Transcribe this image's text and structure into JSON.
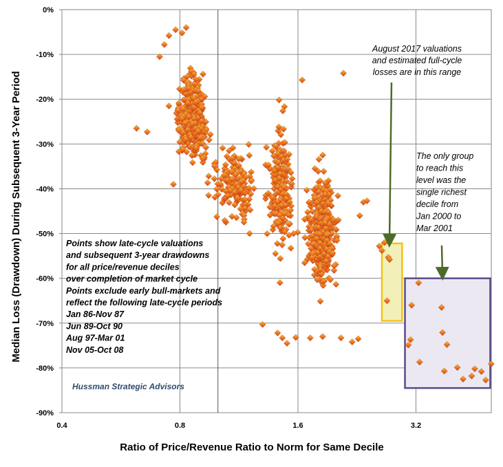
{
  "chart_data": {
    "type": "scatter",
    "title": "",
    "xlabel": "Ratio of Price/Revenue Ratio to Norm for Same Decile",
    "ylabel": "Median Loss (Drawdown) During Subsequent 3-Year Period",
    "x_scale": "log2",
    "xlim": [
      0.4,
      5.4
    ],
    "ylim": [
      -90,
      0
    ],
    "x_tick_labels": [
      "0.4",
      "0.8",
      "1.6",
      "3.2"
    ],
    "x_ticks": [
      0.4,
      0.8,
      1.6,
      3.2
    ],
    "y_ticks": [
      0,
      -10,
      -20,
      -30,
      -40,
      -50,
      -60,
      -70,
      -80,
      -90
    ],
    "y_tick_labels": [
      "0%",
      "-10%",
      "-20%",
      "-30%",
      "-40%",
      "-50%",
      "-60%",
      "-70%",
      "-80%",
      "-90%"
    ],
    "grid": true,
    "vertical_reference_line_x": 1.0,
    "marker_color_fill": "#e8661c",
    "marker_color_highlight": "#f2c318",
    "clusters": [
      {
        "x_center": 0.86,
        "x_spread": 0.09,
        "y_center": -24,
        "y_spread": 8,
        "count": 380
      },
      {
        "x_center": 1.1,
        "x_spread": 0.18,
        "y_center": -39,
        "y_spread": 7,
        "count": 160
      },
      {
        "x_center": 1.45,
        "x_spread": 0.12,
        "y_center": -40,
        "y_spread": 14,
        "count": 200
      },
      {
        "x_center": 1.85,
        "x_spread": 0.18,
        "y_center": -50,
        "y_spread": 11,
        "count": 430
      }
    ],
    "explicit_points": [
      {
        "x": 0.62,
        "y": -26.5
      },
      {
        "x": 0.66,
        "y": -27.3
      },
      {
        "x": 0.77,
        "y": -39
      },
      {
        "x": 0.75,
        "y": -21.5
      },
      {
        "x": 0.79,
        "y": -22.5
      },
      {
        "x": 0.71,
        "y": -10.5
      },
      {
        "x": 0.73,
        "y": -7.8
      },
      {
        "x": 0.75,
        "y": -5.8
      },
      {
        "x": 0.78,
        "y": -4.5
      },
      {
        "x": 0.81,
        "y": -5.2
      },
      {
        "x": 0.83,
        "y": -4.0
      },
      {
        "x": 1.3,
        "y": -70.3
      },
      {
        "x": 1.42,
        "y": -72.2
      },
      {
        "x": 1.46,
        "y": -73.3
      },
      {
        "x": 1.5,
        "y": -74.5
      },
      {
        "x": 1.58,
        "y": -73.2
      },
      {
        "x": 1.72,
        "y": -73.3
      },
      {
        "x": 1.85,
        "y": -73.0
      },
      {
        "x": 2.06,
        "y": -73.3
      },
      {
        "x": 2.2,
        "y": -74.2
      },
      {
        "x": 2.28,
        "y": -73.5
      },
      {
        "x": 2.09,
        "y": -14.2
      },
      {
        "x": 1.64,
        "y": -15.7
      },
      {
        "x": 2.35,
        "y": -43.0
      },
      {
        "x": 2.4,
        "y": -42.7
      },
      {
        "x": 2.3,
        "y": -46
      },
      {
        "x": 2.58,
        "y": -52.8
      },
      {
        "x": 2.62,
        "y": -53.8
      },
      {
        "x": 2.66,
        "y": -52.0
      },
      {
        "x": 2.72,
        "y": -55.3
      },
      {
        "x": 2.74,
        "y": -55.8
      },
      {
        "x": 2.7,
        "y": -65.0
      },
      {
        "x": 3.06,
        "y": -74.9
      },
      {
        "x": 3.1,
        "y": -73.7
      },
      {
        "x": 3.12,
        "y": -66.0
      },
      {
        "x": 3.25,
        "y": -61.0
      },
      {
        "x": 3.27,
        "y": -78.7
      },
      {
        "x": 3.72,
        "y": -66.5
      },
      {
        "x": 3.74,
        "y": -72.1
      },
      {
        "x": 3.84,
        "y": -74.8
      },
      {
        "x": 3.78,
        "y": -80.7
      },
      {
        "x": 4.08,
        "y": -79.9
      },
      {
        "x": 4.22,
        "y": -82.5
      },
      {
        "x": 4.44,
        "y": -81.8
      },
      {
        "x": 4.52,
        "y": -80.2
      },
      {
        "x": 4.7,
        "y": -80.8
      },
      {
        "x": 4.82,
        "y": -82.7
      },
      {
        "x": 4.98,
        "y": -79.1
      }
    ],
    "highlight_boxes": [
      {
        "name": "August 2017 range",
        "x_range": [
          2.62,
          2.95
        ],
        "y_range": [
          -52.2,
          -69.5
        ],
        "color": "#f2c318",
        "fill": "#f2f0b8"
      },
      {
        "name": "single richest decile",
        "x_range": [
          3.0,
          4.95
        ],
        "y_range": [
          -60.0,
          -84.5
        ],
        "color": "#5b4a8a",
        "fill": "#ebe8f2"
      }
    ],
    "annotations": {
      "top": [
        "August 2017 valuations",
        "and estimated full-cycle",
        "losses are in this range"
      ],
      "right": [
        "The only group",
        "to reach this",
        "level was the",
        "single richest",
        "decile from",
        "Jan 2000  to",
        "Mar 2001"
      ],
      "left_bold": [
        "Points show late-cycle valuations",
        "and subsequent  3-year  drawdowns",
        "for all price/revenue deciles",
        "over completion of market cycle",
        "Points exclude early bull-markets and",
        "reflect the following late-cycle periods",
        "Jan 86-Nov 87",
        "Jun 89-Oct 90",
        "Aug 97-Mar 01",
        "Nov 05-Oct 08"
      ],
      "credit": "Hussman Strategic Advisors"
    },
    "arrow_color": "#4e6a2a"
  }
}
